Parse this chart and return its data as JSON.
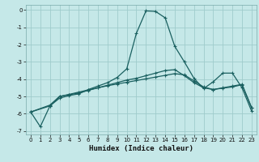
{
  "xlabel": "Humidex (Indice chaleur)",
  "bg_color": "#c5e8e8",
  "grid_color": "#9fcccc",
  "line_color": "#1a6060",
  "xlim": [
    -0.5,
    23.5
  ],
  "ylim": [
    -7.2,
    0.3
  ],
  "yticks": [
    0,
    -1,
    -2,
    -3,
    -4,
    -5,
    -6,
    -7
  ],
  "xticks": [
    0,
    1,
    2,
    3,
    4,
    5,
    6,
    7,
    8,
    9,
    10,
    11,
    12,
    13,
    14,
    15,
    16,
    17,
    18,
    19,
    20,
    21,
    22,
    23
  ],
  "line1_x": [
    0,
    1,
    2,
    3,
    4,
    5,
    6,
    7,
    8,
    9,
    10,
    11,
    12,
    13,
    14,
    15,
    16,
    17,
    18,
    19,
    20,
    21,
    22,
    23
  ],
  "line1_y": [
    -5.9,
    -6.75,
    -5.55,
    -5.1,
    -4.95,
    -4.85,
    -4.6,
    -4.4,
    -4.2,
    -3.9,
    -3.4,
    -1.35,
    -0.05,
    -0.08,
    -0.45,
    -2.1,
    -3.0,
    -3.95,
    -4.55,
    -4.15,
    -3.65,
    -3.65,
    -4.5,
    -5.85
  ],
  "line2_x": [
    0,
    2,
    3,
    4,
    5,
    6,
    7,
    8,
    9,
    10,
    11,
    12,
    13,
    14,
    15,
    16,
    17,
    18,
    19,
    20,
    21,
    22,
    23
  ],
  "line2_y": [
    -5.9,
    -5.55,
    -5.0,
    -4.9,
    -4.8,
    -4.65,
    -4.5,
    -4.35,
    -4.2,
    -4.05,
    -3.95,
    -3.8,
    -3.65,
    -3.5,
    -3.45,
    -3.8,
    -4.2,
    -4.5,
    -4.6,
    -4.5,
    -4.4,
    -4.3,
    -5.65
  ],
  "line3_x": [
    0,
    2,
    3,
    4,
    5,
    6,
    7,
    8,
    9,
    10,
    11,
    12,
    13,
    14,
    15,
    16,
    17,
    18,
    19,
    20,
    21,
    22,
    23
  ],
  "line3_y": [
    -5.9,
    -5.5,
    -5.0,
    -4.88,
    -4.75,
    -4.62,
    -4.5,
    -4.38,
    -4.28,
    -4.18,
    -4.08,
    -3.98,
    -3.88,
    -3.78,
    -3.68,
    -3.75,
    -4.1,
    -4.45,
    -4.6,
    -4.52,
    -4.45,
    -4.32,
    -5.65
  ]
}
